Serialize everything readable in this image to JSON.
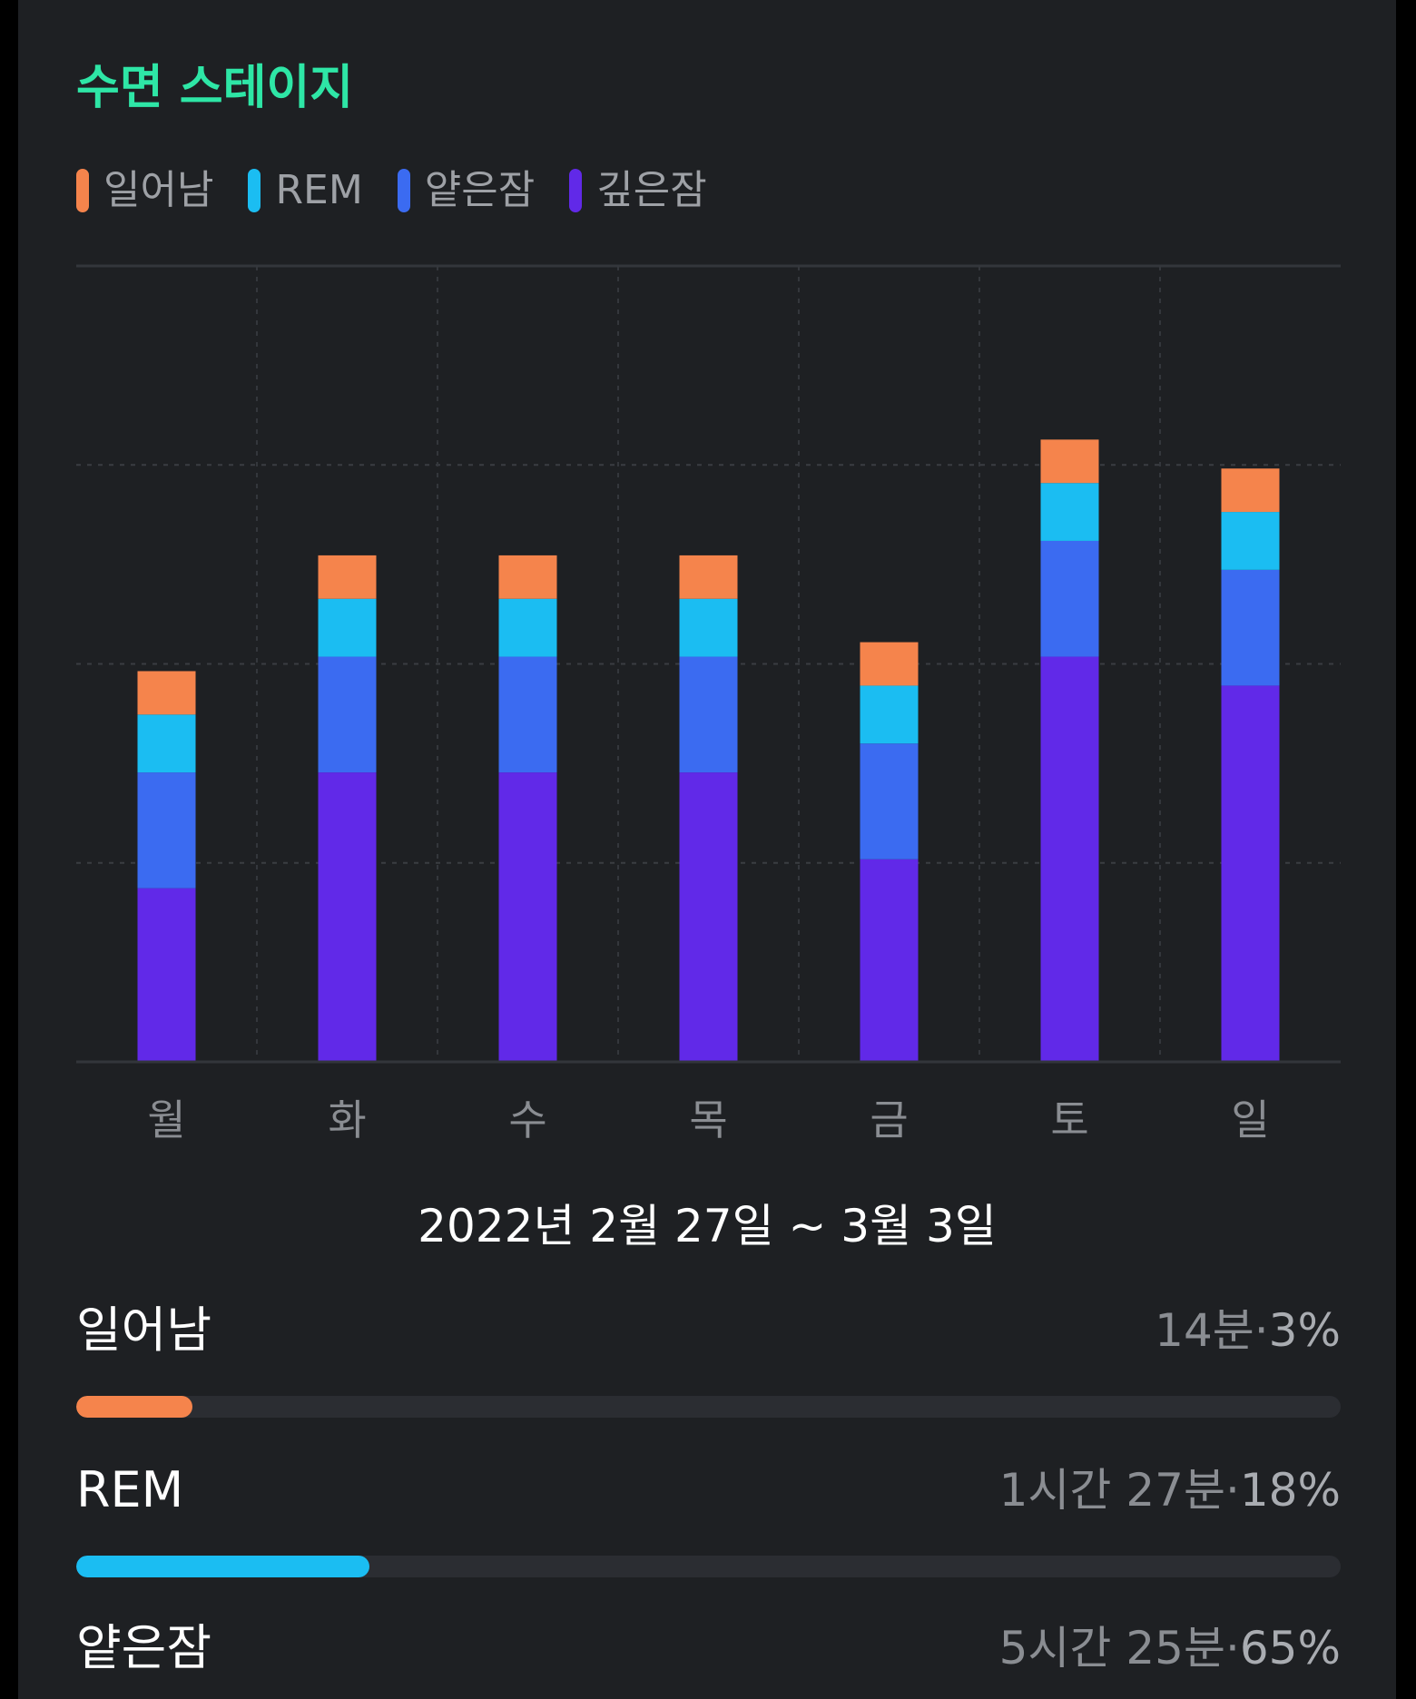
{
  "card": {
    "title": "수면 스테이지",
    "title_color": "#2ee6a6"
  },
  "colors": {
    "awake": "#f5844c",
    "rem": "#1bbdf2",
    "light": "#3b6bf1",
    "deep": "#6129e8"
  },
  "legend": [
    {
      "label": "일어남",
      "color": "#f5844c"
    },
    {
      "label": "REM",
      "color": "#1bbdf2"
    },
    {
      "label": "얕은잠",
      "color": "#3b6bf1"
    },
    {
      "label": "깊은잠",
      "color": "#6129e8"
    }
  ],
  "chart_data": {
    "type": "bar",
    "stacked": true,
    "categories": [
      "월",
      "화",
      "수",
      "목",
      "금",
      "토",
      "일"
    ],
    "series": [
      {
        "name": "깊은잠",
        "color": "#6129e8",
        "values": [
          3.0,
          5.0,
          5.0,
          5.0,
          3.5,
          7.0,
          6.5
        ]
      },
      {
        "name": "얕은잠",
        "color": "#3b6bf1",
        "values": [
          2.0,
          2.0,
          2.0,
          2.0,
          2.0,
          2.0,
          2.0
        ]
      },
      {
        "name": "REM",
        "color": "#1bbdf2",
        "values": [
          1.0,
          1.0,
          1.0,
          1.0,
          1.0,
          1.0,
          1.0
        ]
      },
      {
        "name": "일어남",
        "color": "#f5844c",
        "values": [
          0.75,
          0.75,
          0.75,
          0.75,
          0.75,
          0.75,
          0.75
        ]
      }
    ],
    "ylim": [
      0,
      13.75
    ],
    "grid": true,
    "legend_position": "top-left"
  },
  "date_range": "2022년 2월 27일 ~ 3월 3일",
  "stats": [
    {
      "name": "일어남",
      "duration": "14분",
      "separator": "·",
      "percent": "3%",
      "fraction": 0.092,
      "color": "#f5844c"
    },
    {
      "name": "REM",
      "duration": "1시간 27분",
      "separator": "·",
      "percent": "18%",
      "fraction": 0.232,
      "color": "#1bbdf2"
    },
    {
      "name": "얕은잠",
      "duration": "5시간 25분",
      "separator": "·",
      "percent": "65%",
      "fraction": 0.65,
      "color": "#3b6bf1"
    }
  ]
}
